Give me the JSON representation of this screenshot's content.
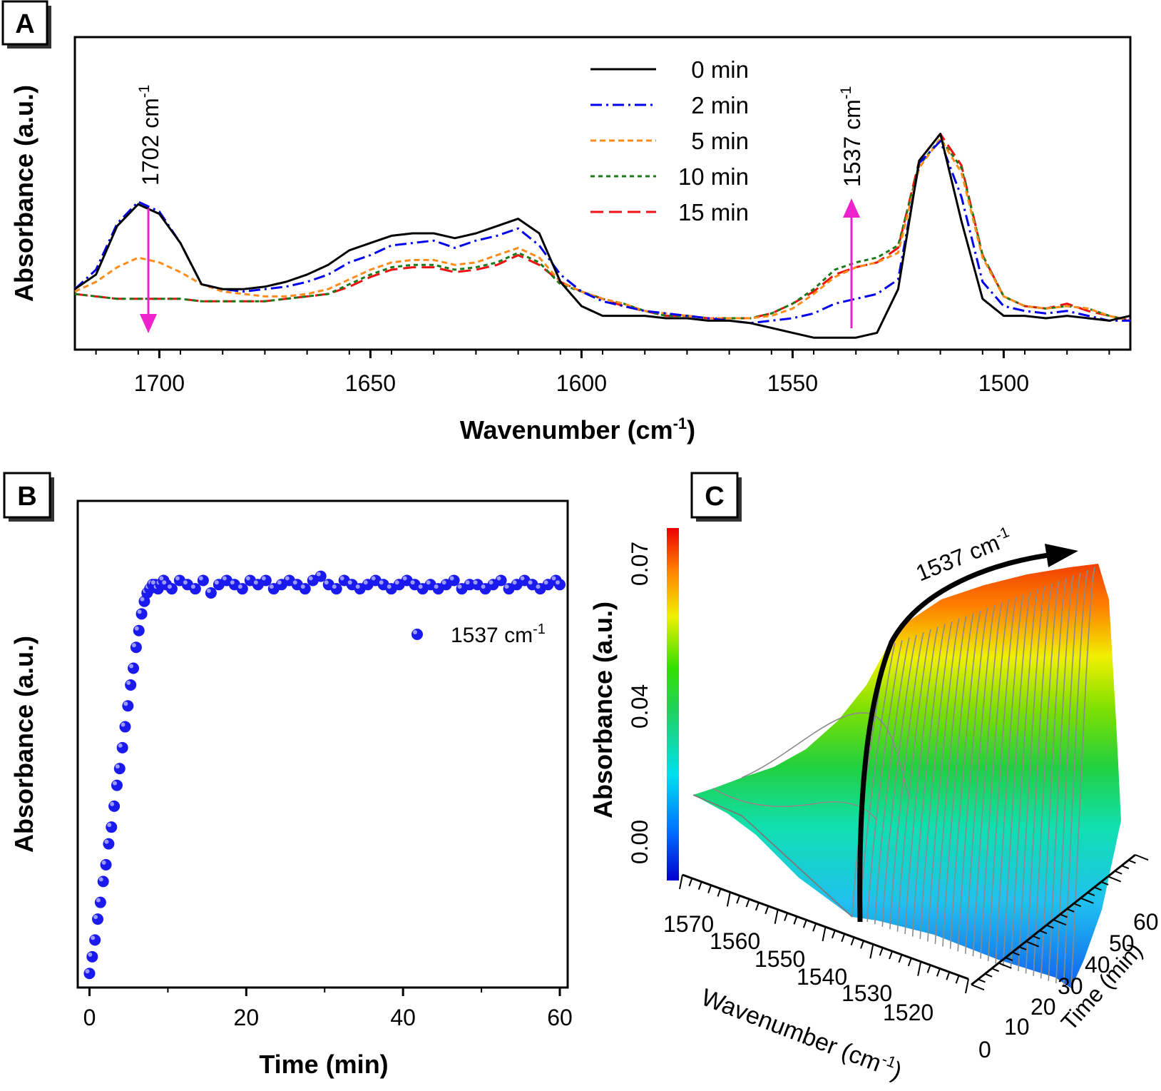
{
  "panels": {
    "A": "A",
    "B": "B",
    "C": "C"
  },
  "colors": {
    "series_0": "#000000",
    "series_2": "#0000ee",
    "series_5": "#ff8c1a",
    "series_10": "#1a7a1a",
    "series_15": "#ee1111",
    "annotation_arrow": "#ee22cc",
    "scatter": "#1a1aee"
  },
  "panel_a_annotations": {
    "left": {
      "number": "1702",
      "unit": "cm",
      "exp": "-1"
    },
    "right": {
      "number": "1537",
      "unit": "cm",
      "exp": "-1"
    }
  },
  "panel_c_annotation": {
    "number": "1537",
    "unit": "cm",
    "exp": "-1"
  },
  "chart_data": [
    {
      "panel": "A",
      "type": "line",
      "xlabel": {
        "main": "Wavenumber (cm",
        "exp": "-1",
        "close": ")"
      },
      "ylabel": "Absorbance (a.u.)",
      "xlim": [
        1720,
        1470
      ],
      "x_reversed": true,
      "ylim": [
        0,
        1
      ],
      "xticks": [
        1700,
        1650,
        1600,
        1550,
        1500
      ],
      "legend_placement": "top-center",
      "x": [
        1720,
        1715,
        1710,
        1705,
        1700,
        1695,
        1690,
        1685,
        1680,
        1675,
        1670,
        1665,
        1660,
        1655,
        1650,
        1645,
        1640,
        1635,
        1630,
        1625,
        1620,
        1615,
        1610,
        1605,
        1600,
        1595,
        1590,
        1585,
        1580,
        1575,
        1570,
        1565,
        1560,
        1555,
        1550,
        1545,
        1540,
        1535,
        1530,
        1525,
        1520,
        1515,
        1510,
        1505,
        1500,
        1495,
        1490,
        1485,
        1480,
        1475,
        1470
      ],
      "series": [
        {
          "name": "0 min",
          "dash": "solid",
          "values": [
            0.22,
            0.28,
            0.48,
            0.57,
            0.53,
            0.41,
            0.24,
            0.22,
            0.22,
            0.23,
            0.25,
            0.28,
            0.32,
            0.38,
            0.41,
            0.44,
            0.45,
            0.45,
            0.43,
            0.45,
            0.48,
            0.51,
            0.45,
            0.25,
            0.15,
            0.11,
            0.11,
            0.11,
            0.1,
            0.1,
            0.09,
            0.09,
            0.08,
            0.06,
            0.04,
            0.02,
            0.02,
            0.02,
            0.04,
            0.22,
            0.75,
            0.86,
            0.5,
            0.18,
            0.11,
            0.11,
            0.1,
            0.11,
            0.1,
            0.09,
            0.11
          ]
        },
        {
          "name": "2 min",
          "dash": "dash-dot",
          "values": [
            0.22,
            0.3,
            0.49,
            0.58,
            0.54,
            0.41,
            0.24,
            0.22,
            0.21,
            0.22,
            0.23,
            0.25,
            0.28,
            0.33,
            0.36,
            0.4,
            0.41,
            0.42,
            0.39,
            0.42,
            0.44,
            0.47,
            0.4,
            0.28,
            0.21,
            0.17,
            0.15,
            0.13,
            0.12,
            0.11,
            0.1,
            0.09,
            0.08,
            0.09,
            0.1,
            0.12,
            0.16,
            0.18,
            0.2,
            0.26,
            0.74,
            0.83,
            0.6,
            0.25,
            0.15,
            0.13,
            0.12,
            0.13,
            0.11,
            0.09,
            0.09
          ]
        },
        {
          "name": "5 min",
          "dash": "dash",
          "values": [
            0.21,
            0.25,
            0.31,
            0.35,
            0.33,
            0.29,
            0.24,
            0.21,
            0.2,
            0.19,
            0.19,
            0.2,
            0.22,
            0.26,
            0.3,
            0.33,
            0.34,
            0.34,
            0.32,
            0.33,
            0.36,
            0.39,
            0.35,
            0.25,
            0.21,
            0.18,
            0.16,
            0.13,
            0.12,
            0.11,
            0.1,
            0.1,
            0.1,
            0.11,
            0.14,
            0.2,
            0.27,
            0.31,
            0.33,
            0.37,
            0.72,
            0.84,
            0.7,
            0.35,
            0.19,
            0.15,
            0.14,
            0.15,
            0.14,
            0.11,
            0.09
          ]
        },
        {
          "name": "10 min",
          "dash": "short-dash",
          "values": [
            0.2,
            0.19,
            0.18,
            0.18,
            0.18,
            0.18,
            0.17,
            0.17,
            0.17,
            0.17,
            0.18,
            0.19,
            0.2,
            0.24,
            0.28,
            0.31,
            0.32,
            0.32,
            0.3,
            0.31,
            0.33,
            0.37,
            0.33,
            0.24,
            0.21,
            0.18,
            0.16,
            0.13,
            0.11,
            0.11,
            0.1,
            0.1,
            0.1,
            0.12,
            0.16,
            0.22,
            0.3,
            0.33,
            0.35,
            0.4,
            0.73,
            0.84,
            0.72,
            0.36,
            0.19,
            0.15,
            0.14,
            0.15,
            0.14,
            0.11,
            0.09
          ]
        },
        {
          "name": "15 min",
          "dash": "long-dash",
          "values": [
            0.2,
            0.19,
            0.18,
            0.18,
            0.18,
            0.18,
            0.17,
            0.17,
            0.17,
            0.17,
            0.18,
            0.19,
            0.2,
            0.23,
            0.27,
            0.3,
            0.31,
            0.31,
            0.29,
            0.3,
            0.32,
            0.36,
            0.32,
            0.25,
            0.21,
            0.18,
            0.15,
            0.13,
            0.11,
            0.11,
            0.1,
            0.1,
            0.1,
            0.12,
            0.16,
            0.21,
            0.28,
            0.31,
            0.33,
            0.39,
            0.75,
            0.86,
            0.73,
            0.36,
            0.19,
            0.15,
            0.14,
            0.16,
            0.13,
            0.11,
            0.09
          ]
        }
      ],
      "annotations": [
        {
          "x": 1702,
          "direction": "down"
        },
        {
          "x": 1537,
          "direction": "up"
        }
      ]
    },
    {
      "panel": "B",
      "type": "scatter",
      "xlabel": "Time (min)",
      "ylabel": "Absorbance (a.u.)",
      "xlim": [
        -1.5,
        61
      ],
      "ylim": [
        0,
        1
      ],
      "xticks": [
        0,
        20,
        40,
        60
      ],
      "legend_placement": "top-right",
      "series": [
        {
          "name": {
            "number": "1537",
            "unit": "cm",
            "exp": "-1"
          },
          "x": [
            0.0,
            0.35,
            0.7,
            1.05,
            1.4,
            1.75,
            2.1,
            2.45,
            2.8,
            3.15,
            3.5,
            3.85,
            4.2,
            4.55,
            4.9,
            5.25,
            5.6,
            5.95,
            6.3,
            6.65,
            7.0,
            7.35,
            7.7,
            8.05,
            8.4,
            8.75,
            9.1,
            9.45,
            9.8,
            10.5,
            11.5,
            12.5,
            13.5,
            14.5,
            15.5,
            16.5,
            17.5,
            18.5,
            19.5,
            20.5,
            21.5,
            22.5,
            23.5,
            24.5,
            25.5,
            26.5,
            27.5,
            28.5,
            29.5,
            30.5,
            31.5,
            32.5,
            33.5,
            34.5,
            35.5,
            36.5,
            37.5,
            38.5,
            39.5,
            40.5,
            41.5,
            42.5,
            43.5,
            44.5,
            45.5,
            46.5,
            47.5,
            48.5,
            49.5,
            50.5,
            51.5,
            52.5,
            53.5,
            54.5,
            55.5,
            56.5,
            57.5,
            58.5,
            59.5,
            60.0
          ],
          "y": [
            0.02,
            0.06,
            0.1,
            0.15,
            0.19,
            0.24,
            0.28,
            0.33,
            0.37,
            0.42,
            0.47,
            0.51,
            0.56,
            0.61,
            0.66,
            0.71,
            0.75,
            0.8,
            0.84,
            0.88,
            0.91,
            0.93,
            0.94,
            0.95,
            0.95,
            0.94,
            0.95,
            0.96,
            0.95,
            0.94,
            0.96,
            0.95,
            0.94,
            0.96,
            0.93,
            0.95,
            0.96,
            0.95,
            0.94,
            0.96,
            0.95,
            0.96,
            0.94,
            0.95,
            0.96,
            0.95,
            0.94,
            0.96,
            0.97,
            0.95,
            0.94,
            0.96,
            0.95,
            0.94,
            0.95,
            0.96,
            0.95,
            0.94,
            0.95,
            0.96,
            0.95,
            0.94,
            0.95,
            0.94,
            0.95,
            0.96,
            0.94,
            0.95,
            0.95,
            0.94,
            0.95,
            0.96,
            0.94,
            0.95,
            0.96,
            0.95,
            0.94,
            0.95,
            0.96,
            0.95
          ]
        }
      ]
    },
    {
      "panel": "C",
      "type": "surface",
      "xlabel": {
        "main": "Wavenumber (cm",
        "exp": "-1",
        "close": ")"
      },
      "ylabel": "Time (min)",
      "zlabel": "Absorbance (a.u.)",
      "xticks": [
        1570,
        1560,
        1550,
        1540,
        1530,
        1520
      ],
      "yticks": [
        0,
        10,
        20,
        30,
        40,
        50,
        60
      ],
      "zticks": [
        "0.00",
        "0.04",
        "0.07"
      ],
      "zlim": [
        0,
        0.07
      ],
      "colormap": "jet"
    }
  ]
}
